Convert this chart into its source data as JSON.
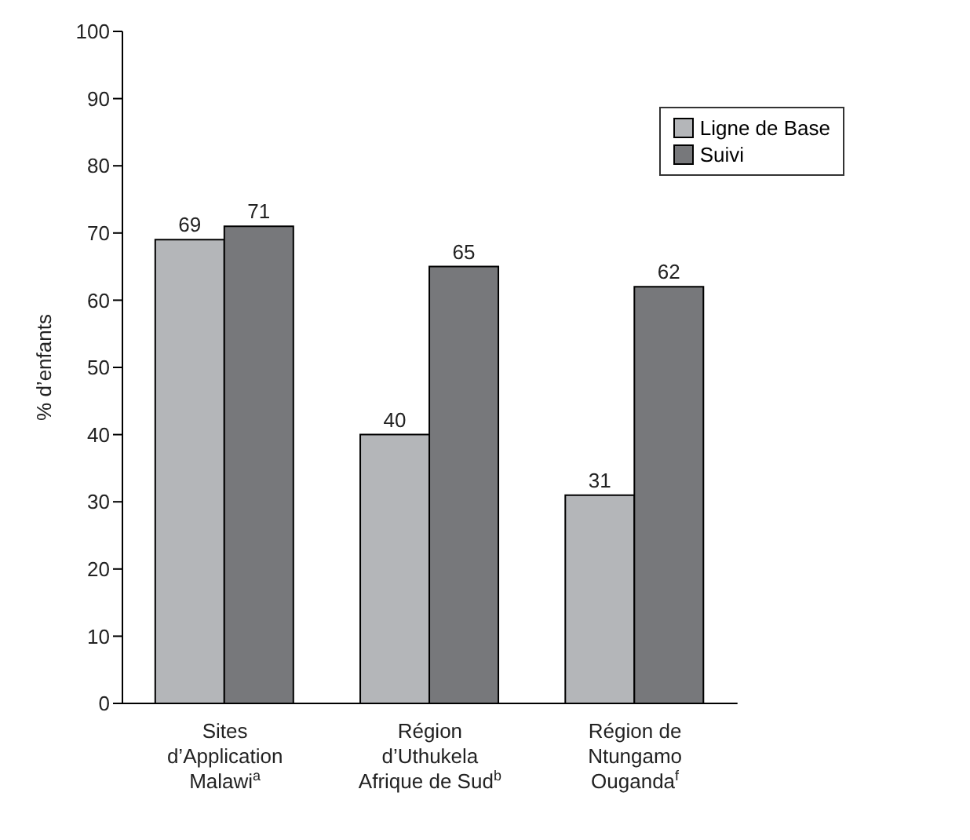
{
  "chart_data": {
    "type": "bar",
    "ylabel": "% d’enfants",
    "categories": [
      "Sites\nd’Application\nMalawi$^{a}$",
      "Région\nd’Uthukela\nAfrique de Sud$^{b}$",
      "Région de\nNtungamo\nOuganda$^{f}$"
    ],
    "series": [
      {
        "name": "Ligne de Base",
        "color": "#b4b6b9",
        "values": [
          69,
          40,
          31
        ]
      },
      {
        "name": "Suivi",
        "color": "#77787b",
        "values": [
          71,
          65,
          62
        ]
      }
    ],
    "ylim": [
      0,
      100
    ],
    "yticks": [
      0,
      10,
      20,
      30,
      40,
      50,
      60,
      70,
      80,
      90,
      100
    ],
    "grid": false,
    "legend": "top right",
    "data_labels": true
  }
}
